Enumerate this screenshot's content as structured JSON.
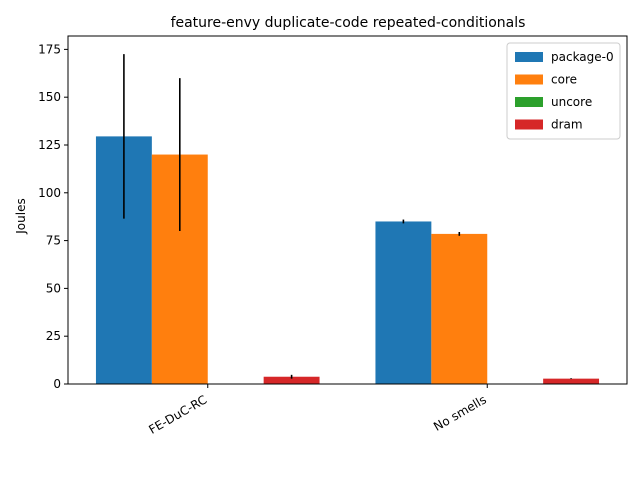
{
  "chart_data": {
    "type": "bar",
    "title": "feature-envy duplicate-code repeated-conditionals",
    "xlabel": "",
    "ylabel": "Joules",
    "categories": [
      "FE-DuC-RC",
      "No smells"
    ],
    "ylim": [
      0,
      182
    ],
    "yticks": [
      0,
      25,
      50,
      75,
      100,
      125,
      150,
      175
    ],
    "grid": false,
    "legend_position": "top-right",
    "series": [
      {
        "name": "package-0",
        "color": "#1f77b4",
        "values": [
          129.5,
          85.0
        ],
        "errors": [
          43.0,
          1.0
        ]
      },
      {
        "name": "core",
        "color": "#ff7f0e",
        "values": [
          120.0,
          78.5
        ],
        "errors": [
          40.0,
          1.0
        ]
      },
      {
        "name": "uncore",
        "color": "#2ca02c",
        "values": [
          0.0,
          0.0
        ],
        "errors": [
          0.0,
          0.0
        ]
      },
      {
        "name": "dram",
        "color": "#d62728",
        "values": [
          3.8,
          2.8
        ],
        "errors": [
          1.0,
          0.2
        ]
      }
    ]
  }
}
